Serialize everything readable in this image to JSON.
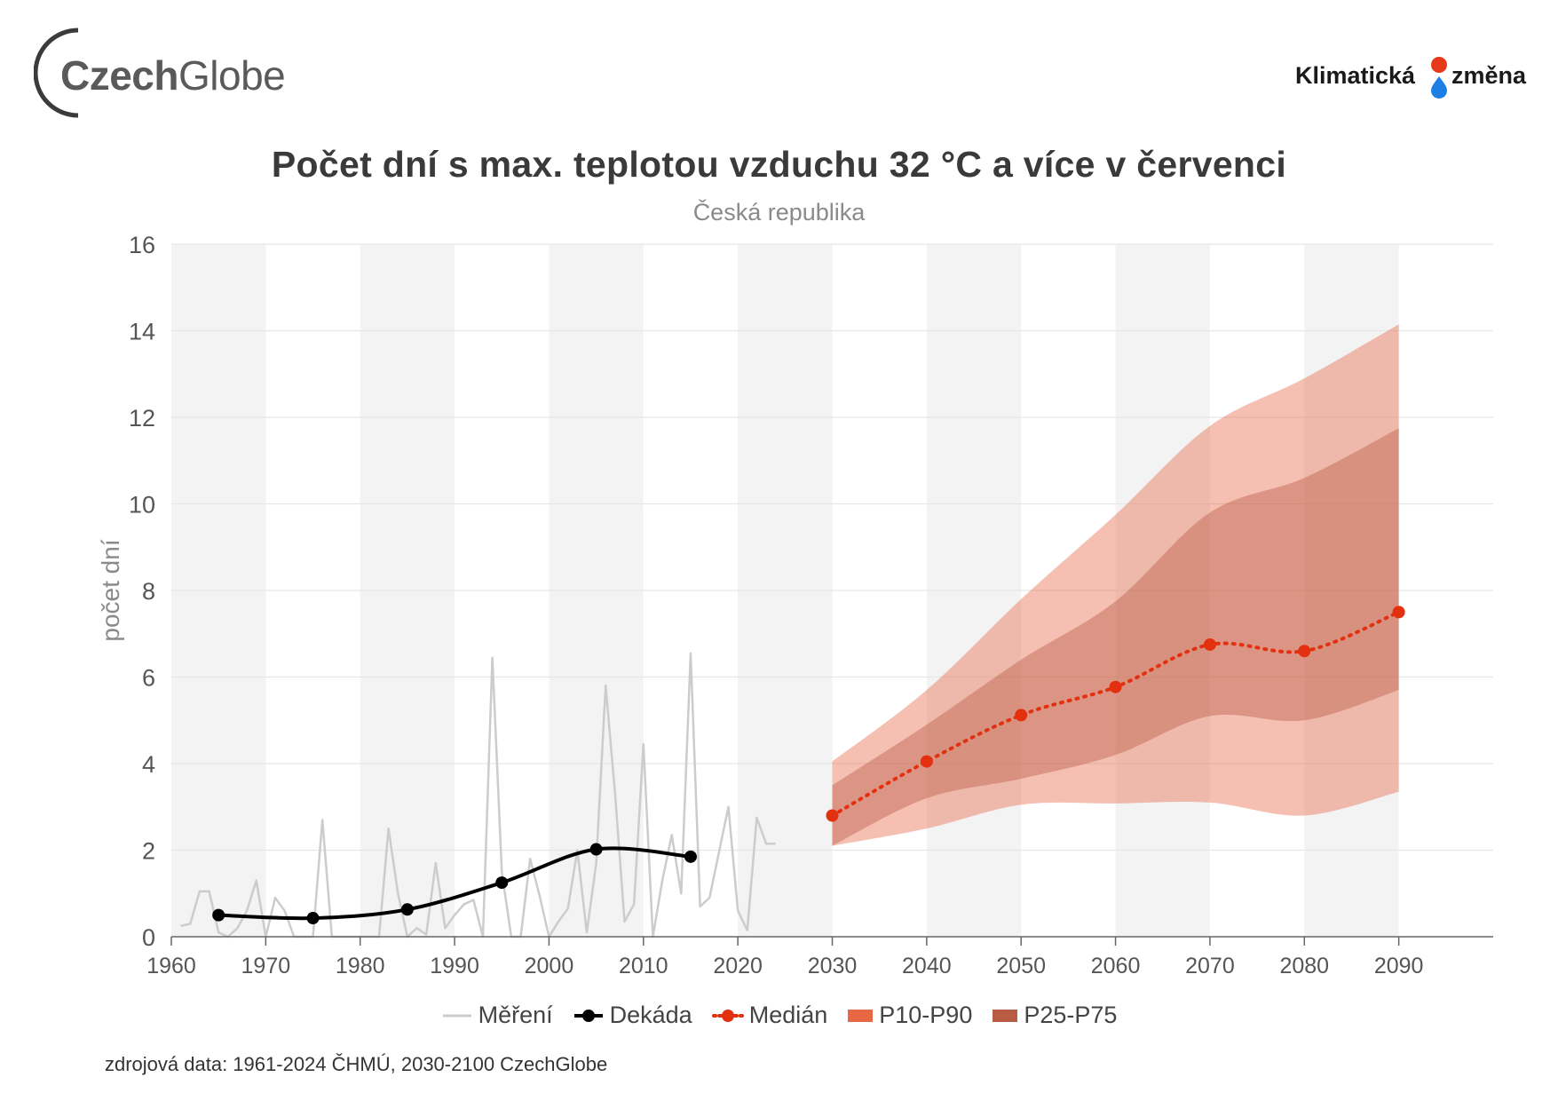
{
  "logos": {
    "left": {
      "part1": "Czech",
      "part2": "Globe"
    },
    "right": {
      "part1": "Klimatická",
      "part2": "změna"
    }
  },
  "colors": {
    "band_light": "#f3f3f3",
    "grid": "#e6e6e6",
    "measurement": "#cccccc",
    "decade": "#000000",
    "median": "#e3300f",
    "p10p90": "#e76845",
    "p25p75": "#b95a45"
  },
  "chart_data": {
    "type": "line",
    "title": "Počet dní s max. teplotou vzduchu 32 °C a více v červenci",
    "subtitle": "Česká republika",
    "xlabel": "",
    "ylabel": "počet dní",
    "xlim": [
      1960,
      2100
    ],
    "ylim": [
      0,
      16
    ],
    "y_ticks": [
      0,
      2,
      4,
      6,
      8,
      10,
      12,
      14,
      16
    ],
    "x_ticks": [
      1960,
      1970,
      1980,
      1990,
      2000,
      2010,
      2020,
      2030,
      2040,
      2050,
      2060,
      2070,
      2080,
      2090
    ],
    "shaded_decades": [
      [
        1960,
        1970
      ],
      [
        1980,
        1990
      ],
      [
        2000,
        2010
      ],
      [
        2020,
        2030
      ],
      [
        2040,
        2050
      ],
      [
        2060,
        2070
      ],
      [
        2080,
        2090
      ]
    ],
    "series": [
      {
        "name": "Měření",
        "style": "line",
        "x": [
          1961,
          1962,
          1963,
          1964,
          1965,
          1966,
          1967,
          1968,
          1969,
          1970,
          1971,
          1972,
          1973,
          1974,
          1975,
          1976,
          1977,
          1978,
          1979,
          1980,
          1981,
          1982,
          1983,
          1984,
          1985,
          1986,
          1987,
          1988,
          1989,
          1990,
          1991,
          1992,
          1993,
          1994,
          1995,
          1996,
          1997,
          1998,
          1999,
          2000,
          2001,
          2002,
          2003,
          2004,
          2005,
          2006,
          2007,
          2008,
          2009,
          2010,
          2011,
          2012,
          2013,
          2014,
          2015,
          2016,
          2017,
          2018,
          2019,
          2020,
          2021,
          2022,
          2023,
          2024
        ],
        "values": [
          0.25,
          0.3,
          1.05,
          1.05,
          0.1,
          0.0,
          0.2,
          0.6,
          1.3,
          0.0,
          0.9,
          0.6,
          0.0,
          0.0,
          0.0,
          2.7,
          0.0,
          0.0,
          0.0,
          0.0,
          0.0,
          0.0,
          2.5,
          1.0,
          0.0,
          0.2,
          0.05,
          1.7,
          0.2,
          0.5,
          0.75,
          0.85,
          0.0,
          6.45,
          1.5,
          0.0,
          0.0,
          1.8,
          0.95,
          0.0,
          0.35,
          0.65,
          2.0,
          0.1,
          1.7,
          5.8,
          3.3,
          0.35,
          0.75,
          4.45,
          0.0,
          1.3,
          2.35,
          1.0,
          6.55,
          0.7,
          0.9,
          1.95,
          3.0,
          0.6,
          0.15,
          2.75,
          2.15,
          2.15
        ]
      },
      {
        "name": "Dekáda",
        "style": "line-markers",
        "x": [
          1965,
          1975,
          1985,
          1995,
          2005,
          2015
        ],
        "values": [
          0.5,
          0.43,
          0.63,
          1.25,
          2.02,
          1.85
        ]
      },
      {
        "name": "Medián",
        "style": "dotted-markers",
        "x": [
          2030,
          2040,
          2050,
          2060,
          2070,
          2080,
          2090
        ],
        "values": [
          2.8,
          4.05,
          5.12,
          5.77,
          6.75,
          6.6,
          7.5
        ]
      },
      {
        "name": "P10-P90",
        "style": "band",
        "x": [
          2030,
          2040,
          2050,
          2060,
          2070,
          2080,
          2090
        ],
        "lower": [
          2.1,
          2.5,
          3.05,
          3.08,
          3.1,
          2.8,
          3.35
        ],
        "upper": [
          4.05,
          5.7,
          7.8,
          9.75,
          11.8,
          12.9,
          14.15
        ]
      },
      {
        "name": "P25-P75",
        "style": "band",
        "x": [
          2030,
          2040,
          2050,
          2060,
          2070,
          2080,
          2090
        ],
        "lower": [
          2.1,
          3.2,
          3.65,
          4.2,
          5.1,
          5.0,
          5.7
        ],
        "upper": [
          3.5,
          4.9,
          6.4,
          7.75,
          9.8,
          10.6,
          11.75
        ]
      }
    ],
    "legend": [
      "Měření",
      "Dekáda",
      "Medián",
      "P10-P90",
      "P25-P75"
    ],
    "legend_position": "bottom-center",
    "source": "zdrojová data: 1961-2024 ČHMÚ, 2030-2100 CzechGlobe"
  }
}
